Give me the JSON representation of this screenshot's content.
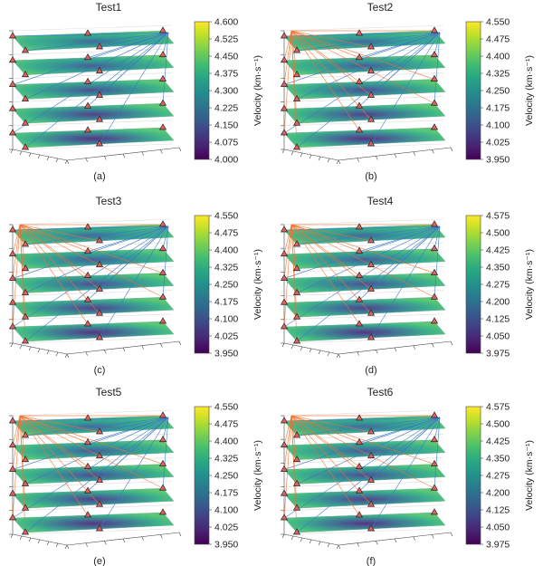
{
  "figure": {
    "colorbar_label": "Velocity (km·s⁻¹)",
    "colormap": "viridis",
    "colors": {
      "ray_blue": "#3a78c8",
      "ray_orange": "#f07030",
      "station_fill": "#e06060",
      "station_edge": "#222222",
      "axis_frame": "#444444"
    }
  },
  "chart_data": [
    {
      "id": "a",
      "type": "3d-slice-tomography",
      "title": "Test1",
      "label": "(a)",
      "n_slices": 5,
      "orange_rays": false,
      "colorbar": {
        "min": 4.0,
        "max": 4.6,
        "ticks": [
          "4.600",
          "4.525",
          "4.450",
          "4.375",
          "4.300",
          "4.225",
          "4.150",
          "4.075",
          "4.000"
        ]
      }
    },
    {
      "id": "b",
      "type": "3d-slice-tomography",
      "title": "Test2",
      "label": "(b)",
      "n_slices": 5,
      "orange_rays": true,
      "colorbar": {
        "min": 3.95,
        "max": 4.55,
        "ticks": [
          "4.550",
          "4.475",
          "4.400",
          "4.325",
          "4.250",
          "4.175",
          "4.100",
          "4.025",
          "3.950"
        ]
      }
    },
    {
      "id": "c",
      "type": "3d-slice-tomography",
      "title": "Test3",
      "label": "(c)",
      "n_slices": 5,
      "orange_rays": true,
      "colorbar": {
        "min": 3.95,
        "max": 4.55,
        "ticks": [
          "4.550",
          "4.475",
          "4.400",
          "4.325",
          "4.250",
          "4.175",
          "4.100",
          "4.025",
          "3.950"
        ]
      }
    },
    {
      "id": "d",
      "type": "3d-slice-tomography",
      "title": "Test4",
      "label": "(d)",
      "n_slices": 5,
      "orange_rays": true,
      "colorbar": {
        "min": 3.975,
        "max": 4.575,
        "ticks": [
          "4.575",
          "4.500",
          "4.425",
          "4.350",
          "4.275",
          "4.200",
          "4.125",
          "4.050",
          "3.975"
        ]
      }
    },
    {
      "id": "e",
      "type": "3d-slice-tomography",
      "title": "Test5",
      "label": "(e)",
      "n_slices": 5,
      "orange_rays": true,
      "colorbar": {
        "min": 3.95,
        "max": 4.55,
        "ticks": [
          "4.550",
          "4.475",
          "4.400",
          "4.325",
          "4.250",
          "4.175",
          "4.100",
          "4.025",
          "3.950"
        ]
      }
    },
    {
      "id": "f",
      "type": "3d-slice-tomography",
      "title": "Test6",
      "label": "(f)",
      "n_slices": 5,
      "orange_rays": true,
      "colorbar": {
        "min": 3.975,
        "max": 4.575,
        "ticks": [
          "4.575",
          "4.500",
          "4.425",
          "4.350",
          "4.275",
          "4.200",
          "4.125",
          "4.050",
          "3.975"
        ]
      }
    }
  ]
}
